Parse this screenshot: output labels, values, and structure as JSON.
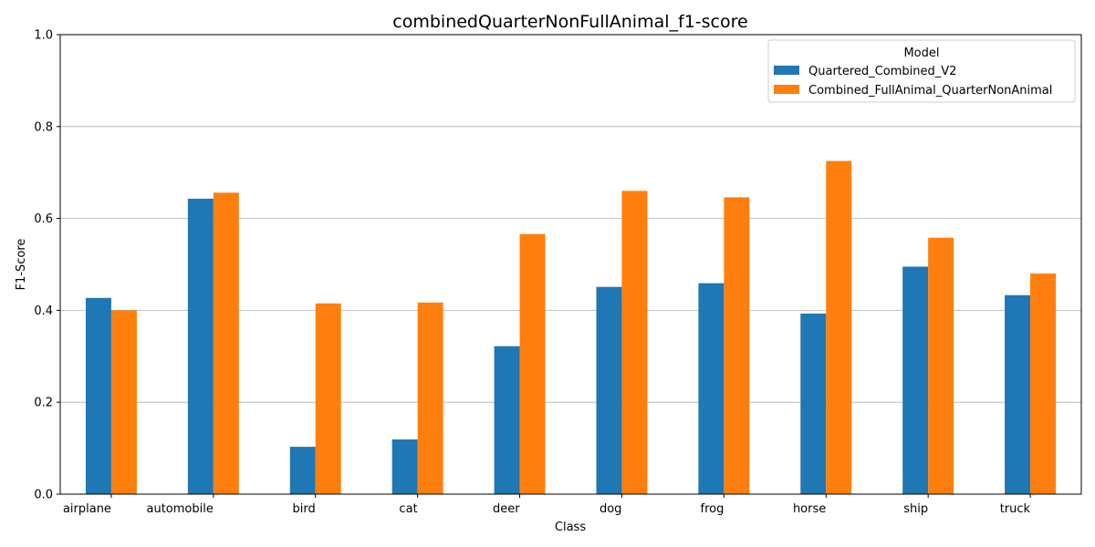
{
  "chart_data": {
    "type": "bar",
    "title": "combinedQuarterNonFullAnimal_f1-score",
    "xlabel": "Class",
    "ylabel": "F1-Score",
    "ylim": [
      0,
      1
    ],
    "yticks": [
      "0.0",
      "0.2",
      "0.4",
      "0.6",
      "0.8",
      "1.0"
    ],
    "grid": "horizontal",
    "legend_title": "Model",
    "legend_position": "top-right",
    "categories": [
      "airplane",
      "automobile",
      "bird",
      "cat",
      "deer",
      "dog",
      "frog",
      "horse",
      "ship",
      "truck"
    ],
    "series": [
      {
        "name": "Quartered_Combined_V2",
        "color": "#1f77b4",
        "values": [
          0.427,
          0.643,
          0.103,
          0.119,
          0.322,
          0.451,
          0.459,
          0.393,
          0.495,
          0.433
        ]
      },
      {
        "name": "Combined_FullAnimal_QuarterNonAnimal",
        "color": "#ff7f0e",
        "values": [
          0.4,
          0.656,
          0.415,
          0.417,
          0.566,
          0.66,
          0.646,
          0.725,
          0.558,
          0.48
        ]
      }
    ]
  }
}
